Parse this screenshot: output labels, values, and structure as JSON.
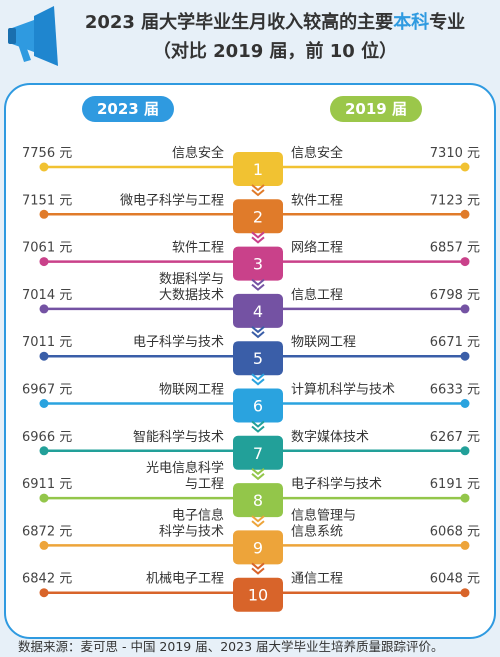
{
  "title": {
    "line1_part1": "2023 届大学毕业生月收入较高的主要",
    "line1_highlight": "本科",
    "line1_part2": "专业",
    "line2": "（对比 2019 届，前 10 位）"
  },
  "colors": {
    "accent": "#2f9ae0",
    "accent_2019": "#9bc74a",
    "megaphone": "#2f9ae0"
  },
  "source": "数据来源：麦可思 - 中国 2019 届、2023 届大学毕业生培养质量跟踪评价。",
  "chart_data": {
    "type": "table",
    "left_header": "2023 届",
    "right_header": "2019 届",
    "unit": "元",
    "rows": [
      {
        "rank": "1",
        "left_major": "信息安全",
        "left_value": 7756,
        "left_label": "7756 元",
        "right_major": "信息安全",
        "right_value": 7310,
        "right_label": "7310 元",
        "color": "#f1c232"
      },
      {
        "rank": "2",
        "left_major": "微电子科学与工程",
        "left_value": 7151,
        "left_label": "7151 元",
        "right_major": "软件工程",
        "right_value": 7123,
        "right_label": "7123 元",
        "color": "#e07b2a"
      },
      {
        "rank": "3",
        "left_major": "软件工程",
        "left_value": 7061,
        "left_label": "7061 元",
        "right_major": "网络工程",
        "right_value": 6857,
        "right_label": "6857 元",
        "color": "#c9418a"
      },
      {
        "rank": "4",
        "left_major": "数据科学与\n大数据技术",
        "left_value": 7014,
        "left_label": "7014 元",
        "right_major": "信息工程",
        "right_value": 6798,
        "right_label": "6798 元",
        "color": "#7452a3"
      },
      {
        "rank": "5",
        "left_major": "电子科学与技术",
        "left_value": 7011,
        "left_label": "7011 元",
        "right_major": "物联网工程",
        "right_value": 6671,
        "right_label": "6671 元",
        "color": "#3a5ea8"
      },
      {
        "rank": "6",
        "left_major": "物联网工程",
        "left_value": 6967,
        "left_label": "6967 元",
        "right_major": "计算机科学与技术",
        "right_value": 6633,
        "right_label": "6633 元",
        "color": "#2aa3df"
      },
      {
        "rank": "7",
        "left_major": "智能科学与技术",
        "left_value": 6966,
        "left_label": "6966 元",
        "right_major": "数字媒体技术",
        "right_value": 6267,
        "right_label": "6267 元",
        "color": "#22a099"
      },
      {
        "rank": "8",
        "left_major": "光电信息科学\n与工程",
        "left_value": 6911,
        "left_label": "6911 元",
        "right_major": "电子科学与技术",
        "right_value": 6191,
        "right_label": "6191 元",
        "color": "#93c64a"
      },
      {
        "rank": "9",
        "left_major": "电子信息\n科学与技术",
        "left_value": 6872,
        "left_label": "6872 元",
        "right_major": "信息管理与\n信息系统",
        "right_value": 6068,
        "right_label": "6068 元",
        "color": "#eda43a"
      },
      {
        "rank": "10",
        "left_major": "机械电子工程",
        "left_value": 6842,
        "left_label": "6842 元",
        "right_major": "通信工程",
        "right_value": 6048,
        "right_label": "6048 元",
        "color": "#d8642a"
      }
    ]
  }
}
